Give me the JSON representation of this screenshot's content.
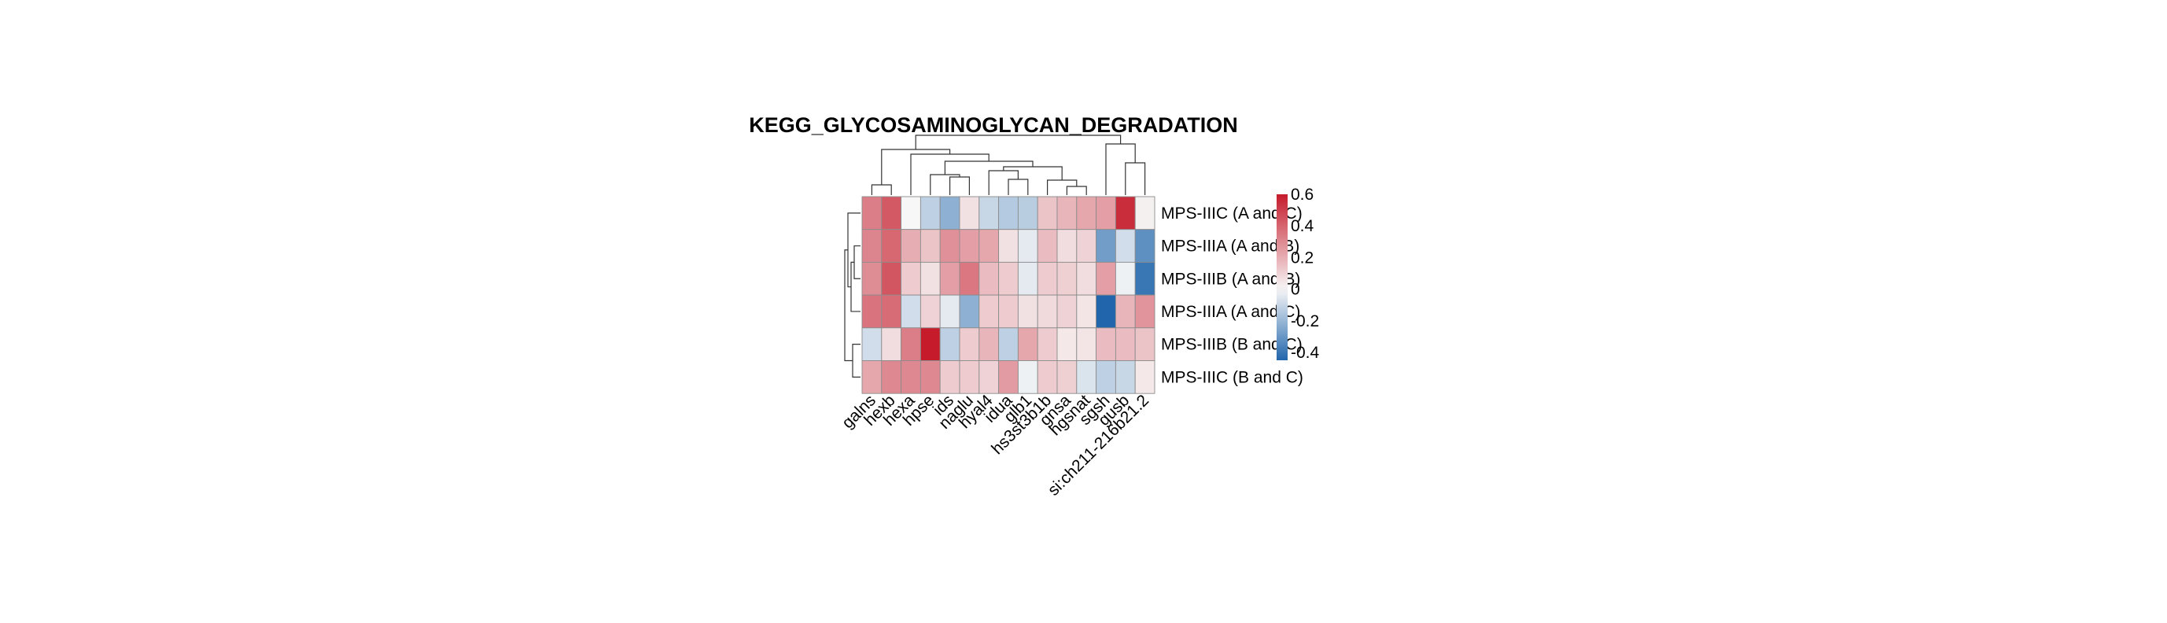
{
  "chart_data": {
    "type": "heatmap",
    "title": "KEGG_GLYCOSAMINOGLYCAN_DEGRADATION",
    "rows": [
      "MPS-IIIC (A and C)",
      "MPS-IIIA (A and B)",
      "MPS-IIIB (A and B)",
      "MPS-IIIA (A and C)",
      "MPS-IIIB (B and C)",
      "MPS-IIIC (B and C)"
    ],
    "columns": [
      "galns",
      "hexb",
      "hexa",
      "hpse",
      "ids",
      "naglu",
      "hyal4",
      "idua",
      "glb1",
      "hs3st3b1b",
      "gnsa",
      "hgsnat",
      "sgsh",
      "gusb",
      "si:ch211-216b21.2"
    ],
    "values": [
      [
        0.33,
        0.43,
        0.0,
        -0.12,
        -0.22,
        0.06,
        -0.1,
        -0.14,
        -0.13,
        0.14,
        0.18,
        0.22,
        0.24,
        0.55,
        0.02
      ],
      [
        0.31,
        0.39,
        0.2,
        0.14,
        0.28,
        0.24,
        0.22,
        0.06,
        -0.04,
        0.16,
        0.07,
        0.1,
        -0.28,
        -0.08,
        -0.32
      ],
      [
        0.29,
        0.44,
        0.12,
        0.06,
        0.24,
        0.35,
        0.16,
        0.12,
        -0.04,
        0.12,
        0.11,
        0.07,
        0.24,
        -0.02,
        -0.4
      ],
      [
        0.36,
        0.38,
        -0.08,
        0.1,
        -0.04,
        -0.22,
        0.12,
        0.12,
        0.06,
        0.08,
        0.1,
        0.05,
        -0.45,
        0.18,
        0.27
      ],
      [
        -0.08,
        0.07,
        0.33,
        0.6,
        -0.12,
        0.12,
        0.18,
        -0.12,
        0.22,
        0.12,
        0.04,
        0.05,
        0.16,
        0.16,
        0.14
      ],
      [
        0.22,
        0.3,
        0.3,
        0.3,
        0.12,
        0.12,
        0.1,
        0.25,
        -0.02,
        0.12,
        0.11,
        -0.06,
        -0.12,
        -0.1,
        0.04
      ]
    ],
    "color_scale": {
      "min": -0.45,
      "mid": 0,
      "max": 0.6,
      "low_color": "#2166ac",
      "mid_color": "#f7f7f7",
      "high_color": "#c51b2b"
    },
    "legend_ticks": [
      "0.6",
      "0.4",
      "0.2",
      "0",
      "-0.2",
      "-0.4"
    ],
    "legend_tick_values": [
      0.6,
      0.4,
      0.2,
      0,
      -0.2,
      -0.4
    ]
  }
}
